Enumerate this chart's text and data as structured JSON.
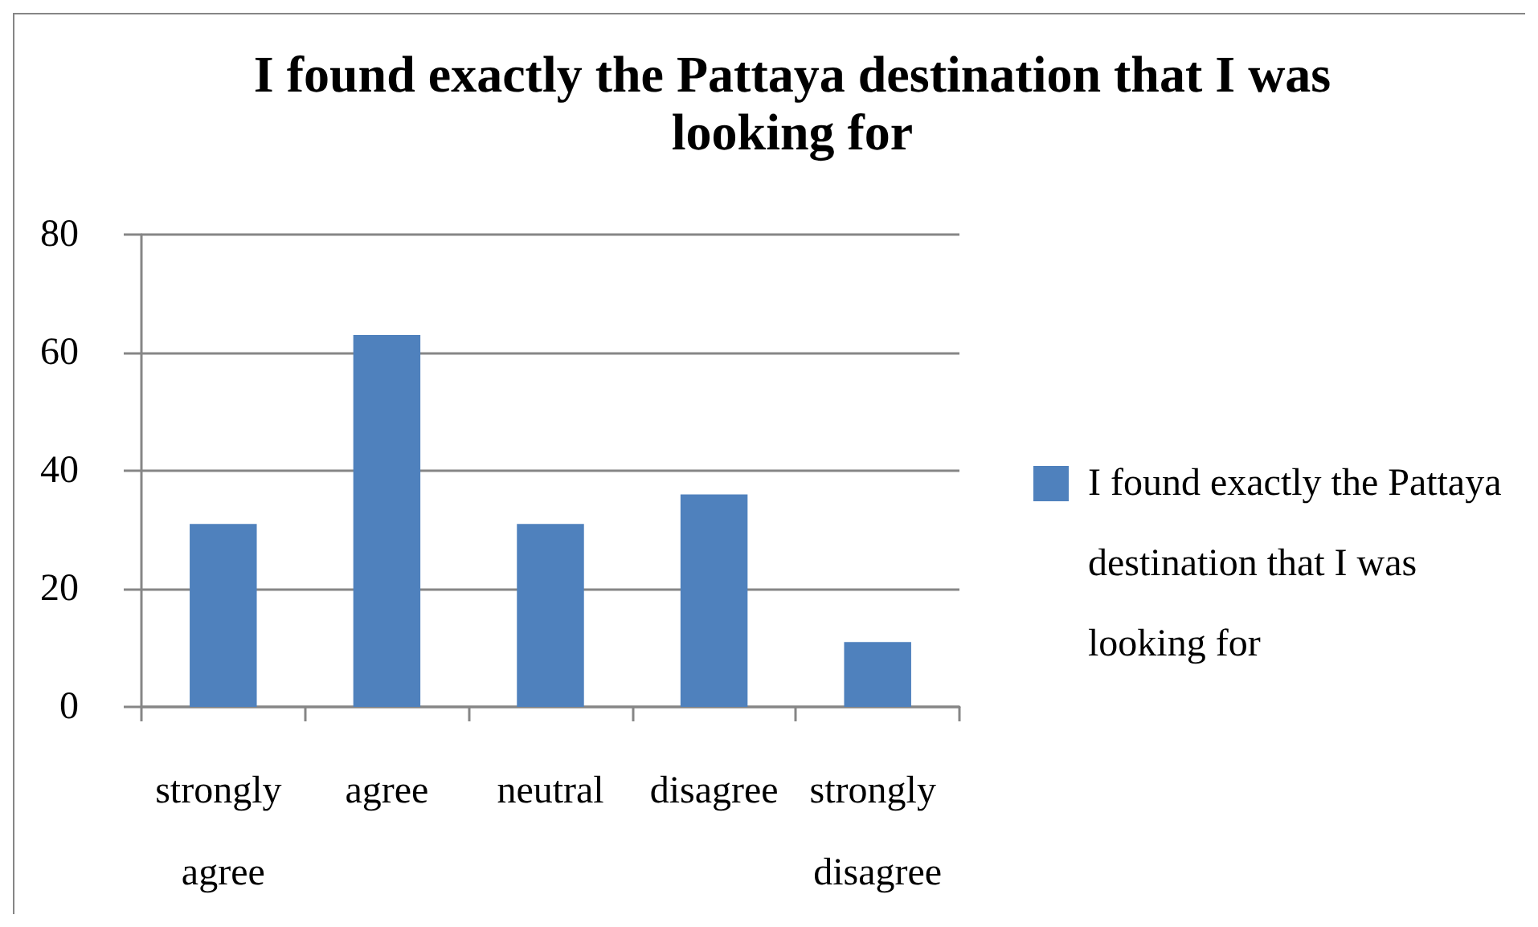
{
  "chart_data": {
    "type": "bar",
    "title": "I found exactly the Pattaya destination that I was looking for",
    "categories": [
      "strongly agree",
      "agree",
      "neutral",
      "disagree",
      "strongly disagree"
    ],
    "series": [
      {
        "name": "I found exactly the Pattaya destination that I was looking for",
        "color": "#4f81bd",
        "values": [
          31,
          63,
          31,
          36,
          11
        ]
      }
    ],
    "ylim": [
      0,
      80
    ],
    "yticks": [
      0,
      20,
      40,
      60,
      80
    ],
    "grid": "y",
    "legend": "right"
  }
}
